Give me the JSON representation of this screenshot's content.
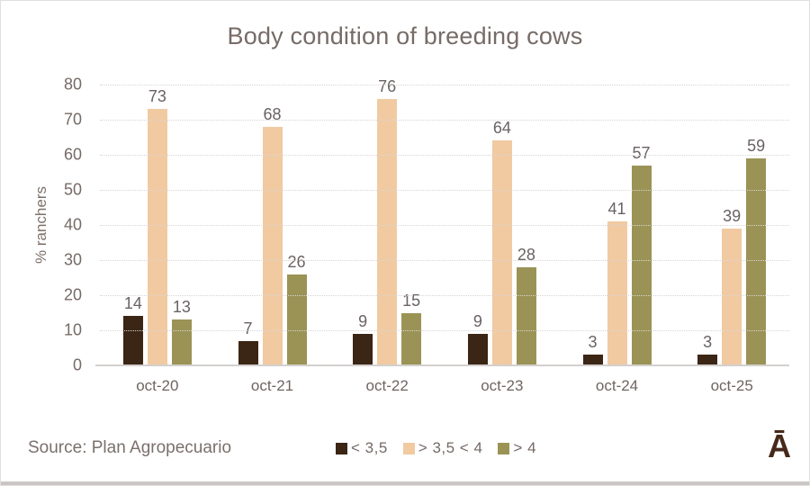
{
  "title": "Body condition of breeding cows",
  "footer": {
    "source": "Source: Plan Agropecuario",
    "logo": "Ā"
  },
  "colors": {
    "series_lt35": "#3B2514",
    "series_35to4": "#F1CAA2",
    "series_gt4": "#9A9355",
    "title_text": "#766b66",
    "label_text": "#6a6263",
    "gridline": "#d8d5d3",
    "logo_brown": "#46291a"
  },
  "chart_data": {
    "type": "bar",
    "title": "Body condition of breeding cows",
    "xlabel": "",
    "ylabel": "% ranchers",
    "ylim": [
      0,
      80
    ],
    "ytick_step": 10,
    "grid": true,
    "legend_position": "bottom",
    "categories": [
      "oct-20",
      "oct-21",
      "oct-22",
      "oct-23",
      "oct-24",
      "oct-25"
    ],
    "series": [
      {
        "name": "< 3,5",
        "color": "#3B2514",
        "values": [
          14,
          7,
          9,
          9,
          3,
          3
        ]
      },
      {
        "name": "> 3,5 < 4",
        "color": "#F1CAA2",
        "values": [
          73,
          68,
          76,
          64,
          41,
          39
        ]
      },
      {
        "name": "> 4",
        "color": "#9A9355",
        "values": [
          13,
          26,
          15,
          28,
          57,
          59
        ]
      }
    ]
  }
}
